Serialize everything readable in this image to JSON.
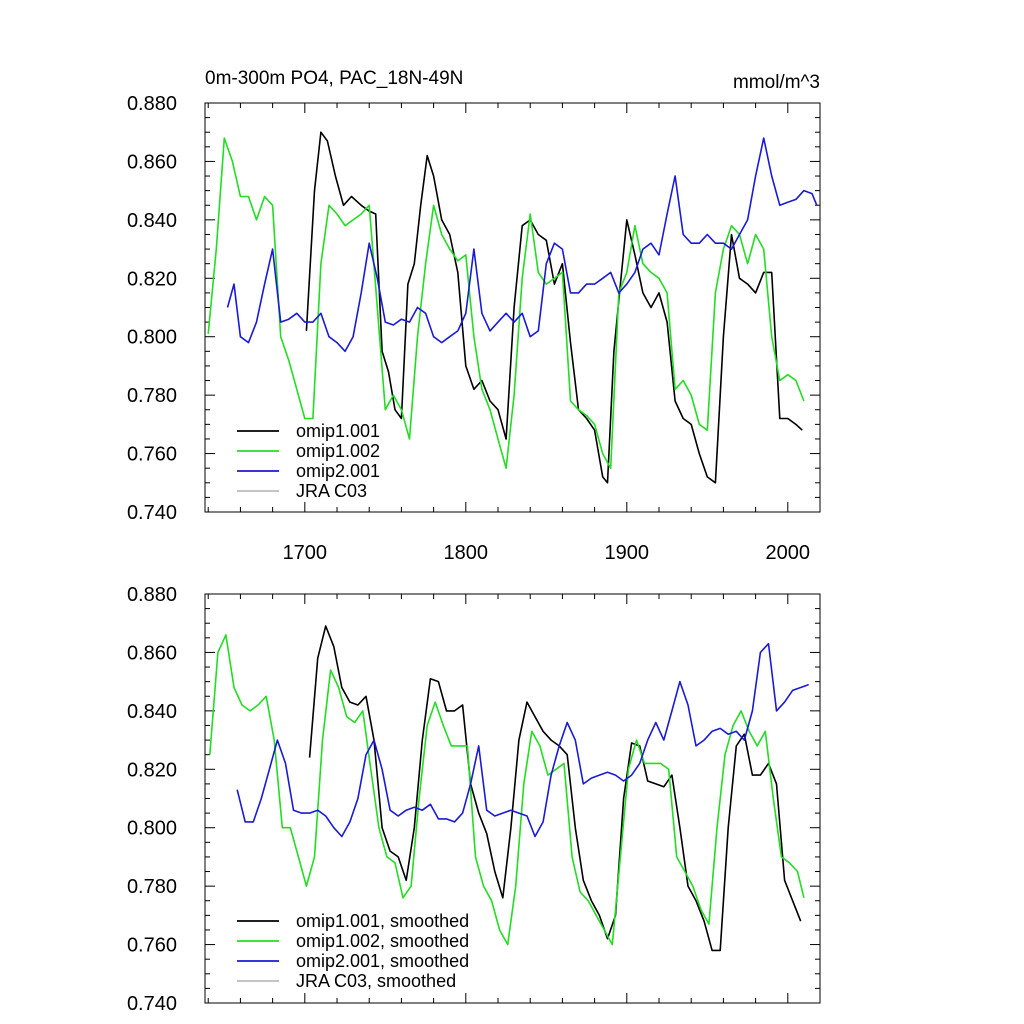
{
  "colors": {
    "omip1_001": "#000000",
    "omip1_002": "#22dd22",
    "omip2_001": "#1a1ad6",
    "jra": "#bbbbbb"
  },
  "top": {
    "title_left": "0m-300m PO4, PAC_18N-49N",
    "title_right": "mmol/m^3"
  },
  "chart_data": [
    {
      "type": "line",
      "title": "0m-300m PO4, PAC_18N-49N",
      "units": "mmol/m^3",
      "xlim": [
        1638,
        2020
      ],
      "ylim": [
        0.74,
        0.88
      ],
      "x_ticks": [
        1700,
        1800,
        1900,
        2000
      ],
      "y_ticks": [
        "0.740",
        "0.760",
        "0.780",
        "0.800",
        "0.820",
        "0.840",
        "0.860",
        "0.880"
      ],
      "legend": [
        "omip1.001",
        "omip1.002",
        "omip2.001",
        "JRA C03"
      ],
      "series": [
        {
          "name": "omip1.001",
          "color_key": "omip1_001",
          "x": [
            1701,
            1706,
            1710,
            1714,
            1719,
            1724,
            1729,
            1735,
            1740,
            1744,
            1748,
            1752,
            1756,
            1760,
            1764,
            1768,
            1772,
            1776,
            1780,
            1785,
            1790,
            1795,
            1800,
            1805,
            1810,
            1815,
            1820,
            1825,
            1830,
            1835,
            1840,
            1845,
            1850,
            1855,
            1860,
            1865,
            1870,
            1875,
            1880,
            1885,
            1888,
            1892,
            1896,
            1900,
            1905,
            1910,
            1915,
            1920,
            1925,
            1930,
            1935,
            1940,
            1945,
            1950,
            1955,
            1960,
            1965,
            1970,
            1975,
            1980,
            1985,
            1990,
            1995,
            2000,
            2005,
            2009
          ],
          "y": [
            0.802,
            0.85,
            0.87,
            0.867,
            0.855,
            0.845,
            0.848,
            0.845,
            0.843,
            0.842,
            0.795,
            0.788,
            0.775,
            0.772,
            0.818,
            0.825,
            0.845,
            0.862,
            0.855,
            0.84,
            0.835,
            0.822,
            0.79,
            0.782,
            0.785,
            0.778,
            0.775,
            0.765,
            0.81,
            0.838,
            0.84,
            0.835,
            0.833,
            0.818,
            0.825,
            0.798,
            0.775,
            0.772,
            0.768,
            0.752,
            0.75,
            0.795,
            0.818,
            0.84,
            0.828,
            0.815,
            0.81,
            0.815,
            0.805,
            0.778,
            0.772,
            0.77,
            0.76,
            0.752,
            0.75,
            0.8,
            0.835,
            0.82,
            0.818,
            0.815,
            0.822,
            0.822,
            0.772,
            0.772,
            0.77,
            0.768
          ]
        },
        {
          "name": "omip1.002",
          "color_key": "omip1_002",
          "x": [
            1640,
            1645,
            1650,
            1655,
            1660,
            1665,
            1670,
            1675,
            1680,
            1685,
            1690,
            1695,
            1700,
            1705,
            1710,
            1715,
            1720,
            1725,
            1730,
            1735,
            1740,
            1745,
            1750,
            1755,
            1760,
            1765,
            1770,
            1775,
            1780,
            1785,
            1790,
            1795,
            1800,
            1805,
            1810,
            1815,
            1820,
            1825,
            1830,
            1835,
            1840,
            1845,
            1850,
            1855,
            1860,
            1865,
            1870,
            1875,
            1880,
            1885,
            1890,
            1895,
            1900,
            1905,
            1910,
            1915,
            1920,
            1925,
            1930,
            1935,
            1940,
            1945,
            1950,
            1955,
            1960,
            1965,
            1970,
            1975,
            1980,
            1985,
            1990,
            1995,
            2000,
            2005,
            2010
          ],
          "y": [
            0.801,
            0.83,
            0.868,
            0.86,
            0.848,
            0.848,
            0.84,
            0.848,
            0.845,
            0.8,
            0.792,
            0.782,
            0.772,
            0.772,
            0.825,
            0.845,
            0.842,
            0.838,
            0.84,
            0.842,
            0.845,
            0.81,
            0.775,
            0.78,
            0.775,
            0.765,
            0.8,
            0.825,
            0.845,
            0.835,
            0.83,
            0.826,
            0.828,
            0.8,
            0.782,
            0.775,
            0.765,
            0.755,
            0.78,
            0.82,
            0.842,
            0.822,
            0.818,
            0.82,
            0.822,
            0.778,
            0.775,
            0.773,
            0.77,
            0.76,
            0.755,
            0.815,
            0.822,
            0.838,
            0.825,
            0.822,
            0.82,
            0.815,
            0.782,
            0.785,
            0.78,
            0.77,
            0.768,
            0.815,
            0.83,
            0.838,
            0.835,
            0.825,
            0.835,
            0.83,
            0.8,
            0.785,
            0.787,
            0.785,
            0.778
          ]
        },
        {
          "name": "omip2.001",
          "color_key": "omip2_001",
          "x": [
            1652,
            1656,
            1660,
            1665,
            1670,
            1675,
            1680,
            1685,
            1690,
            1695,
            1700,
            1705,
            1710,
            1715,
            1720,
            1725,
            1730,
            1735,
            1740,
            1745,
            1750,
            1755,
            1760,
            1765,
            1770,
            1775,
            1780,
            1785,
            1790,
            1795,
            1800,
            1805,
            1810,
            1815,
            1820,
            1825,
            1830,
            1835,
            1840,
            1845,
            1850,
            1855,
            1860,
            1865,
            1870,
            1875,
            1880,
            1885,
            1890,
            1895,
            1900,
            1905,
            1910,
            1915,
            1920,
            1925,
            1930,
            1935,
            1940,
            1945,
            1950,
            1955,
            1960,
            1965,
            1970,
            1975,
            1980,
            1985,
            1990,
            1995,
            2000,
            2005,
            2010,
            2015,
            2018
          ],
          "y": [
            0.81,
            0.818,
            0.8,
            0.798,
            0.805,
            0.818,
            0.83,
            0.805,
            0.806,
            0.808,
            0.805,
            0.805,
            0.808,
            0.8,
            0.798,
            0.795,
            0.8,
            0.815,
            0.832,
            0.82,
            0.805,
            0.804,
            0.806,
            0.805,
            0.81,
            0.808,
            0.8,
            0.798,
            0.8,
            0.802,
            0.808,
            0.83,
            0.808,
            0.802,
            0.805,
            0.808,
            0.805,
            0.808,
            0.8,
            0.802,
            0.825,
            0.832,
            0.83,
            0.815,
            0.815,
            0.818,
            0.818,
            0.82,
            0.822,
            0.815,
            0.818,
            0.822,
            0.83,
            0.832,
            0.828,
            0.842,
            0.855,
            0.835,
            0.832,
            0.832,
            0.835,
            0.832,
            0.832,
            0.83,
            0.835,
            0.84,
            0.855,
            0.868,
            0.855,
            0.845,
            0.846,
            0.847,
            0.85,
            0.849,
            0.845
          ]
        }
      ]
    },
    {
      "type": "line",
      "title": "",
      "xlim": [
        1638,
        2020
      ],
      "ylim": [
        0.74,
        0.88
      ],
      "y_ticks": [
        "0.740",
        "0.760",
        "0.780",
        "0.800",
        "0.820",
        "0.840",
        "0.860",
        "0.880"
      ],
      "legend": [
        "omip1.001, smoothed",
        "omip1.002, smoothed",
        "omip2.001, smoothed",
        "JRA C03, smoothed"
      ],
      "series": [
        {
          "name": "omip1.001, smoothed",
          "color_key": "omip1_001",
          "x": [
            1703,
            1708,
            1713,
            1718,
            1723,
            1728,
            1733,
            1738,
            1743,
            1748,
            1753,
            1758,
            1763,
            1768,
            1773,
            1778,
            1783,
            1788,
            1793,
            1798,
            1803,
            1808,
            1813,
            1818,
            1823,
            1828,
            1833,
            1838,
            1843,
            1848,
            1853,
            1858,
            1863,
            1868,
            1873,
            1878,
            1883,
            1888,
            1893,
            1898,
            1903,
            1908,
            1913,
            1918,
            1923,
            1928,
            1933,
            1938,
            1943,
            1948,
            1953,
            1958,
            1963,
            1968,
            1973,
            1978,
            1983,
            1988,
            1993,
            1998,
            2003,
            2008
          ],
          "y": [
            0.824,
            0.858,
            0.869,
            0.862,
            0.848,
            0.843,
            0.842,
            0.845,
            0.83,
            0.8,
            0.792,
            0.79,
            0.782,
            0.8,
            0.83,
            0.851,
            0.85,
            0.84,
            0.84,
            0.842,
            0.815,
            0.805,
            0.798,
            0.785,
            0.776,
            0.8,
            0.83,
            0.843,
            0.838,
            0.833,
            0.83,
            0.828,
            0.825,
            0.8,
            0.782,
            0.775,
            0.77,
            0.762,
            0.77,
            0.81,
            0.829,
            0.828,
            0.816,
            0.815,
            0.814,
            0.818,
            0.8,
            0.78,
            0.775,
            0.768,
            0.758,
            0.758,
            0.8,
            0.828,
            0.832,
            0.818,
            0.818,
            0.822,
            0.815,
            0.782,
            0.775,
            0.768
          ]
        },
        {
          "name": "omip1.002, smoothed",
          "color_key": "omip1_002",
          "x": [
            1641,
            1646,
            1651,
            1656,
            1661,
            1666,
            1671,
            1676,
            1681,
            1686,
            1691,
            1696,
            1701,
            1706,
            1711,
            1716,
            1721,
            1726,
            1731,
            1736,
            1741,
            1746,
            1751,
            1756,
            1761,
            1766,
            1771,
            1776,
            1781,
            1786,
            1791,
            1796,
            1801,
            1806,
            1811,
            1816,
            1821,
            1826,
            1831,
            1836,
            1841,
            1846,
            1851,
            1856,
            1861,
            1866,
            1871,
            1876,
            1881,
            1886,
            1891,
            1896,
            1901,
            1906,
            1911,
            1916,
            1921,
            1926,
            1931,
            1936,
            1941,
            1946,
            1951,
            1956,
            1961,
            1966,
            1971,
            1976,
            1981,
            1986,
            1991,
            1996,
            2001,
            2006,
            2010
          ],
          "y": [
            0.825,
            0.86,
            0.866,
            0.848,
            0.842,
            0.84,
            0.842,
            0.845,
            0.83,
            0.8,
            0.8,
            0.79,
            0.78,
            0.79,
            0.83,
            0.854,
            0.848,
            0.838,
            0.836,
            0.84,
            0.82,
            0.8,
            0.79,
            0.788,
            0.776,
            0.78,
            0.81,
            0.835,
            0.843,
            0.835,
            0.828,
            0.828,
            0.828,
            0.79,
            0.78,
            0.775,
            0.765,
            0.76,
            0.78,
            0.815,
            0.833,
            0.828,
            0.818,
            0.82,
            0.822,
            0.79,
            0.778,
            0.775,
            0.77,
            0.765,
            0.76,
            0.79,
            0.82,
            0.83,
            0.822,
            0.822,
            0.822,
            0.82,
            0.79,
            0.785,
            0.78,
            0.772,
            0.767,
            0.8,
            0.825,
            0.835,
            0.84,
            0.833,
            0.828,
            0.833,
            0.81,
            0.79,
            0.788,
            0.785,
            0.776
          ]
        },
        {
          "name": "omip2.001, smoothed",
          "color_key": "omip2_001",
          "x": [
            1658,
            1663,
            1668,
            1673,
            1678,
            1683,
            1688,
            1693,
            1698,
            1703,
            1708,
            1713,
            1718,
            1723,
            1728,
            1733,
            1738,
            1743,
            1748,
            1753,
            1758,
            1763,
            1768,
            1773,
            1778,
            1783,
            1788,
            1793,
            1798,
            1803,
            1808,
            1813,
            1818,
            1823,
            1828,
            1833,
            1838,
            1843,
            1848,
            1853,
            1858,
            1863,
            1868,
            1873,
            1878,
            1883,
            1888,
            1893,
            1898,
            1903,
            1908,
            1913,
            1918,
            1923,
            1928,
            1933,
            1938,
            1943,
            1948,
            1953,
            1958,
            1963,
            1968,
            1973,
            1978,
            1983,
            1988,
            1993,
            1998,
            2003,
            2008,
            2013
          ],
          "y": [
            0.813,
            0.802,
            0.802,
            0.81,
            0.82,
            0.83,
            0.822,
            0.806,
            0.805,
            0.805,
            0.806,
            0.804,
            0.8,
            0.797,
            0.802,
            0.81,
            0.825,
            0.83,
            0.82,
            0.806,
            0.804,
            0.806,
            0.807,
            0.806,
            0.808,
            0.803,
            0.803,
            0.802,
            0.805,
            0.815,
            0.828,
            0.806,
            0.804,
            0.805,
            0.806,
            0.805,
            0.804,
            0.797,
            0.802,
            0.818,
            0.828,
            0.836,
            0.83,
            0.815,
            0.817,
            0.818,
            0.819,
            0.818,
            0.816,
            0.818,
            0.822,
            0.83,
            0.836,
            0.83,
            0.84,
            0.85,
            0.842,
            0.828,
            0.83,
            0.833,
            0.834,
            0.832,
            0.833,
            0.83,
            0.84,
            0.86,
            0.863,
            0.84,
            0.843,
            0.847,
            0.848,
            0.849
          ]
        }
      ]
    }
  ]
}
